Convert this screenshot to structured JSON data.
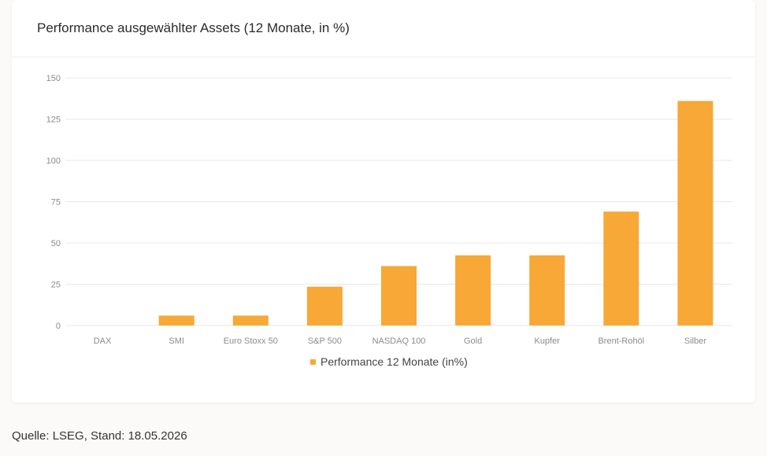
{
  "title": "Performance ausgewählter Assets (12 Monate, in %)",
  "source": "Quelle: LSEG, Stand: 18.05.2026",
  "colors": {
    "bar": "#f7a836",
    "grid": "#e8e8e8",
    "tick": "#8c8c8c",
    "legend_text": "#444444"
  },
  "chart_data": {
    "type": "bar",
    "categories": [
      "DAX",
      "SMI",
      "Euro Stoxx 50",
      "S&P 500",
      "NASDAQ 100",
      "Gold",
      "Kupfer",
      "Brent-Rohöl",
      "Silber"
    ],
    "series": [
      {
        "name": "Performance 12 Monate (in%)",
        "values": [
          0,
          6,
          6,
          23.5,
          36,
          42.5,
          42.5,
          69,
          136
        ]
      }
    ],
    "yticks": [
      "0",
      "25",
      "50",
      "75",
      "100",
      "125",
      "150"
    ],
    "ylim": [
      0,
      150
    ],
    "grid": true,
    "legend_position": "bottom"
  }
}
